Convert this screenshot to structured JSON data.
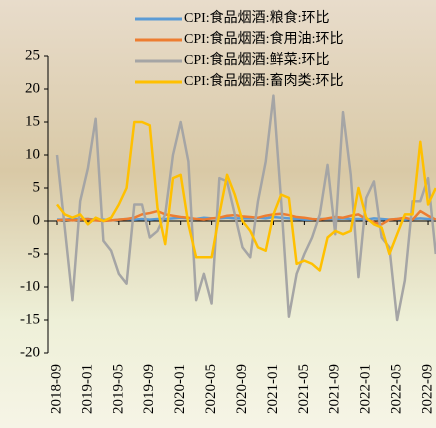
{
  "chart_data": {
    "type": "line",
    "categories": [
      "2018-09",
      null,
      null,
      null,
      "2019-01",
      null,
      null,
      null,
      "2019-05",
      null,
      null,
      null,
      "2019-09",
      null,
      null,
      null,
      "2020-01",
      null,
      null,
      null,
      "2020-05",
      null,
      null,
      null,
      "2020-09",
      null,
      null,
      null,
      "2021-01",
      null,
      null,
      null,
      "2021-05",
      null,
      null,
      null,
      "2021-09",
      null,
      null,
      null,
      "2022-01",
      null,
      null,
      null,
      "2022-05",
      null,
      null,
      null,
      "2022-09",
      null
    ],
    "series": [
      {
        "name": "CPI:食品烟酒:粮食:环比",
        "color": "#5b9bd5",
        "values": [
          0.2,
          0.2,
          0.3,
          0.3,
          0.3,
          0.2,
          0.2,
          0.1,
          0.2,
          0.3,
          0.2,
          0.3,
          0.2,
          0.3,
          0.3,
          0.4,
          0.5,
          0.4,
          0.3,
          0.5,
          0.4,
          0.4,
          0.5,
          0.4,
          0.4,
          0.4,
          0.5,
          0.4,
          0.6,
          0.5,
          0.4,
          0.3,
          0.2,
          0.2,
          0.3,
          0.3,
          0.3,
          0.4,
          0.3,
          0.3,
          0.2,
          0.4,
          0.3,
          0.2,
          0.3,
          0.2,
          0.3,
          0.4,
          0.3,
          0.2
        ]
      },
      {
        "name": "CPI:食品烟酒:食用油:环比",
        "color": "#ed7d31",
        "values": [
          0.1,
          0.2,
          0.1,
          0.2,
          0.3,
          0.1,
          0.0,
          0.1,
          0.2,
          0.3,
          0.5,
          1.0,
          1.2,
          1.5,
          1.0,
          0.8,
          0.6,
          0.5,
          0.3,
          0.2,
          0.4,
          0.5,
          0.8,
          0.9,
          0.7,
          0.6,
          0.5,
          0.8,
          1.0,
          1.1,
          0.9,
          0.6,
          0.5,
          0.3,
          0.2,
          0.4,
          0.6,
          0.5,
          0.8,
          1.0,
          0.3,
          -0.2,
          -0.5,
          0.2,
          0.3,
          0.5,
          0.2,
          1.5,
          0.8,
          0.2
        ]
      },
      {
        "name": "CPI:食品烟酒:鲜菜:环比",
        "color": "#a5a5a5",
        "values": [
          10,
          -1,
          -12,
          3,
          8,
          15.5,
          -3,
          -4.5,
          -8,
          -9.5,
          2.5,
          2.5,
          -2.5,
          -1.5,
          1,
          10,
          15,
          9,
          -12,
          -8,
          -12.5,
          6.5,
          6,
          1,
          -4,
          -5.5,
          3,
          9,
          19,
          3,
          -14.5,
          -8,
          -5,
          -2.5,
          1,
          8.5,
          -2,
          16.5,
          7,
          -8.5,
          3.5,
          6,
          -2.5,
          -4,
          -15,
          -9,
          3,
          3,
          6.5,
          -5
        ]
      },
      {
        "name": "CPI:食品烟酒:畜肉类:环比",
        "color": "#ffc000",
        "values": [
          2.5,
          1,
          0.5,
          1,
          -0.5,
          0.5,
          0,
          0.5,
          2.5,
          5,
          15,
          15,
          14.5,
          2,
          -3.5,
          6.5,
          7,
          -0.5,
          -5.5,
          -5.5,
          -5.5,
          1,
          7,
          4,
          0,
          -1.5,
          -4,
          -4.5,
          1,
          4,
          3.5,
          -6.5,
          -6,
          -6.5,
          -7.5,
          -2.5,
          -1.5,
          -2,
          -1.5,
          5,
          0.5,
          -0.5,
          -1,
          -5,
          -2,
          1,
          1,
          12,
          2.5,
          5
        ]
      }
    ],
    "ylim": [
      -20,
      25
    ],
    "yticks": [
      -20,
      -15,
      -10,
      -5,
      0,
      5,
      10,
      15,
      20,
      25
    ],
    "legend": "upper right"
  }
}
